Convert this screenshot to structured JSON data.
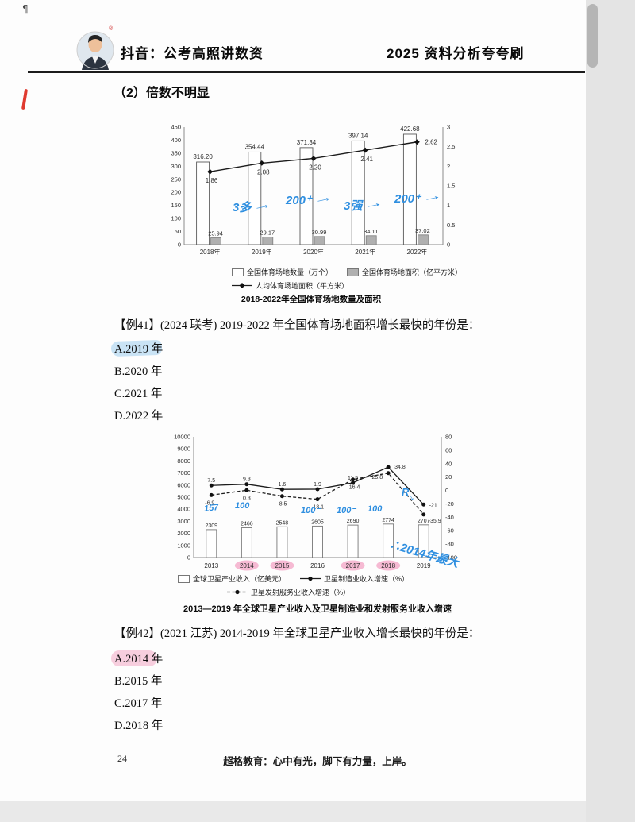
{
  "header": {
    "brand_left": "抖音：公考高照讲数资",
    "brand_right": "2025 资料分析夸夸刷"
  },
  "section": {
    "title": "（2）倍数不明显"
  },
  "q41": {
    "stem": "【例41】(2024 联考) 2019-2022 年全国体育场地面积增长最快的年份是：",
    "options": [
      "A.2019 年",
      "B.2020 年",
      "C.2021 年",
      "D.2022 年"
    ]
  },
  "q42": {
    "stem": "【例42】(2021 江苏) 2014-2019 年全球卫星产业收入增长最快的年份是：",
    "options": [
      "A.2014 年",
      "B.2015 年",
      "C.2017 年",
      "D.2018 年"
    ]
  },
  "footer": {
    "page_number": "24",
    "slogan": "超格教育：心中有光，脚下有力量，上岸。"
  },
  "annotations": {
    "chart1": [
      "3多",
      "200⁺",
      "3强",
      "200⁺"
    ],
    "chart2": [
      "157",
      "100⁻",
      "100⁻",
      "100⁻",
      "100⁻",
      "R"
    ],
    "chart2_conclusion": "∴2014年最大",
    "highlighted_years": [
      "2014",
      "2015",
      "2017",
      "2018"
    ]
  },
  "chart_data": [
    {
      "type": "bar+line",
      "title": "2018-2022年全国体育场地数量及面积",
      "categories": [
        "2018年",
        "2019年",
        "2020年",
        "2021年",
        "2022年"
      ],
      "series": [
        {
          "name": "全国体育场地数量（万个）",
          "type": "bar",
          "axis": "left",
          "values": [
            316.2,
            354.44,
            371.34,
            397.14,
            422.68
          ]
        },
        {
          "name": "全国体育场地面积（亿平方米）",
          "type": "bar",
          "axis": "left",
          "values": [
            25.94,
            29.17,
            30.99,
            34.11,
            37.02
          ]
        },
        {
          "name": "人均体育场地面积（平方米）",
          "type": "line",
          "axis": "right",
          "values": [
            1.86,
            2.08,
            2.2,
            2.41,
            2.62
          ]
        }
      ],
      "left_axis": {
        "min": 0,
        "max": 450,
        "step": 50
      },
      "right_axis": {
        "min": 0,
        "max": 3,
        "step": 0.5
      },
      "legend_position": "bottom",
      "grid": false
    },
    {
      "type": "bar+line",
      "title": "2013—2019 年全球卫星产业收入及卫星制造业和发射服务业收入增速",
      "categories": [
        "2013",
        "2014",
        "2015",
        "2016",
        "2017",
        "2018",
        "2019"
      ],
      "series": [
        {
          "name": "全球卫星产业收入（亿美元）",
          "type": "bar",
          "axis": "left",
          "values": [
            2309,
            2466,
            2548,
            2605,
            2690,
            2774,
            2707
          ]
        },
        {
          "name": "卫星制造业收入增速（%）",
          "type": "line",
          "style": "solid",
          "axis": "right",
          "values": [
            7.5,
            9.3,
            1.6,
            1.9,
            11.5,
            34.8,
            -21
          ]
        },
        {
          "name": "卫星发射服务业收入增速（%）",
          "type": "line",
          "style": "dashed",
          "axis": "right",
          "values": [
            -6.9,
            0.3,
            -8.5,
            -13.1,
            16.4,
            25.8,
            -35.9
          ]
        }
      ],
      "left_axis": {
        "min": 0,
        "max": 10000,
        "step": 1000
      },
      "right_axis": {
        "min": -100,
        "max": 80,
        "step": 20
      },
      "legend_position": "bottom",
      "grid": false
    }
  ]
}
